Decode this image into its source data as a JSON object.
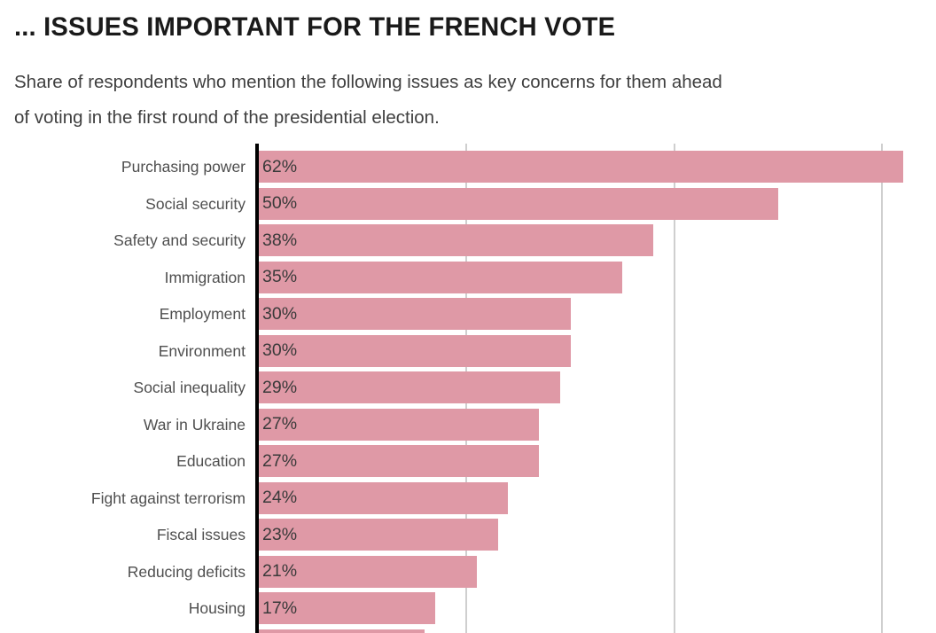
{
  "header": {
    "title": "... ISSUES IMPORTANT FOR THE FRENCH VOTE",
    "subtitle": "Share of respondents who mention the following issues as key concerns for them ahead of voting in the first round of the presidential election.",
    "subtitle_lines": [
      "Share of respondents who mention the following issues as key concerns for them ahead",
      "of voting in the first round of the presidential election."
    ]
  },
  "chart_data": {
    "type": "bar",
    "orientation": "horizontal",
    "title": "... ISSUES IMPORTANT FOR THE FRENCH VOTE",
    "categories": [
      "Purchasing power",
      "Social security",
      "Safety and security",
      "Immigration",
      "Employment",
      "Environment",
      "Social inequality",
      "War in Ukraine",
      "Education",
      "Fight against terrorism",
      "Fiscal issues",
      "Reducing deficits",
      "Housing"
    ],
    "values": [
      62,
      50,
      38,
      35,
      30,
      30,
      29,
      27,
      27,
      24,
      23,
      21,
      17
    ],
    "value_label_suffix": "%",
    "value_label_position": "inside-left",
    "cutoff_bar": {
      "visible": true,
      "approx_value": 16,
      "label_visible": false
    },
    "xlim": [
      0,
      65.2
    ],
    "gridlines_pct": [
      20,
      40,
      60
    ],
    "grid": true,
    "legend": false,
    "xlabel": "",
    "ylabel": ""
  },
  "colors": {
    "bar": "#df99a6",
    "axis": "#000000",
    "gridline": "#cfcfcf",
    "title_text": "#1a1a1a",
    "subtitle_text": "#3f3f3f",
    "category_text": "#4f4f4f",
    "value_text": "#3a3a3a",
    "background": "#ffffff"
  }
}
